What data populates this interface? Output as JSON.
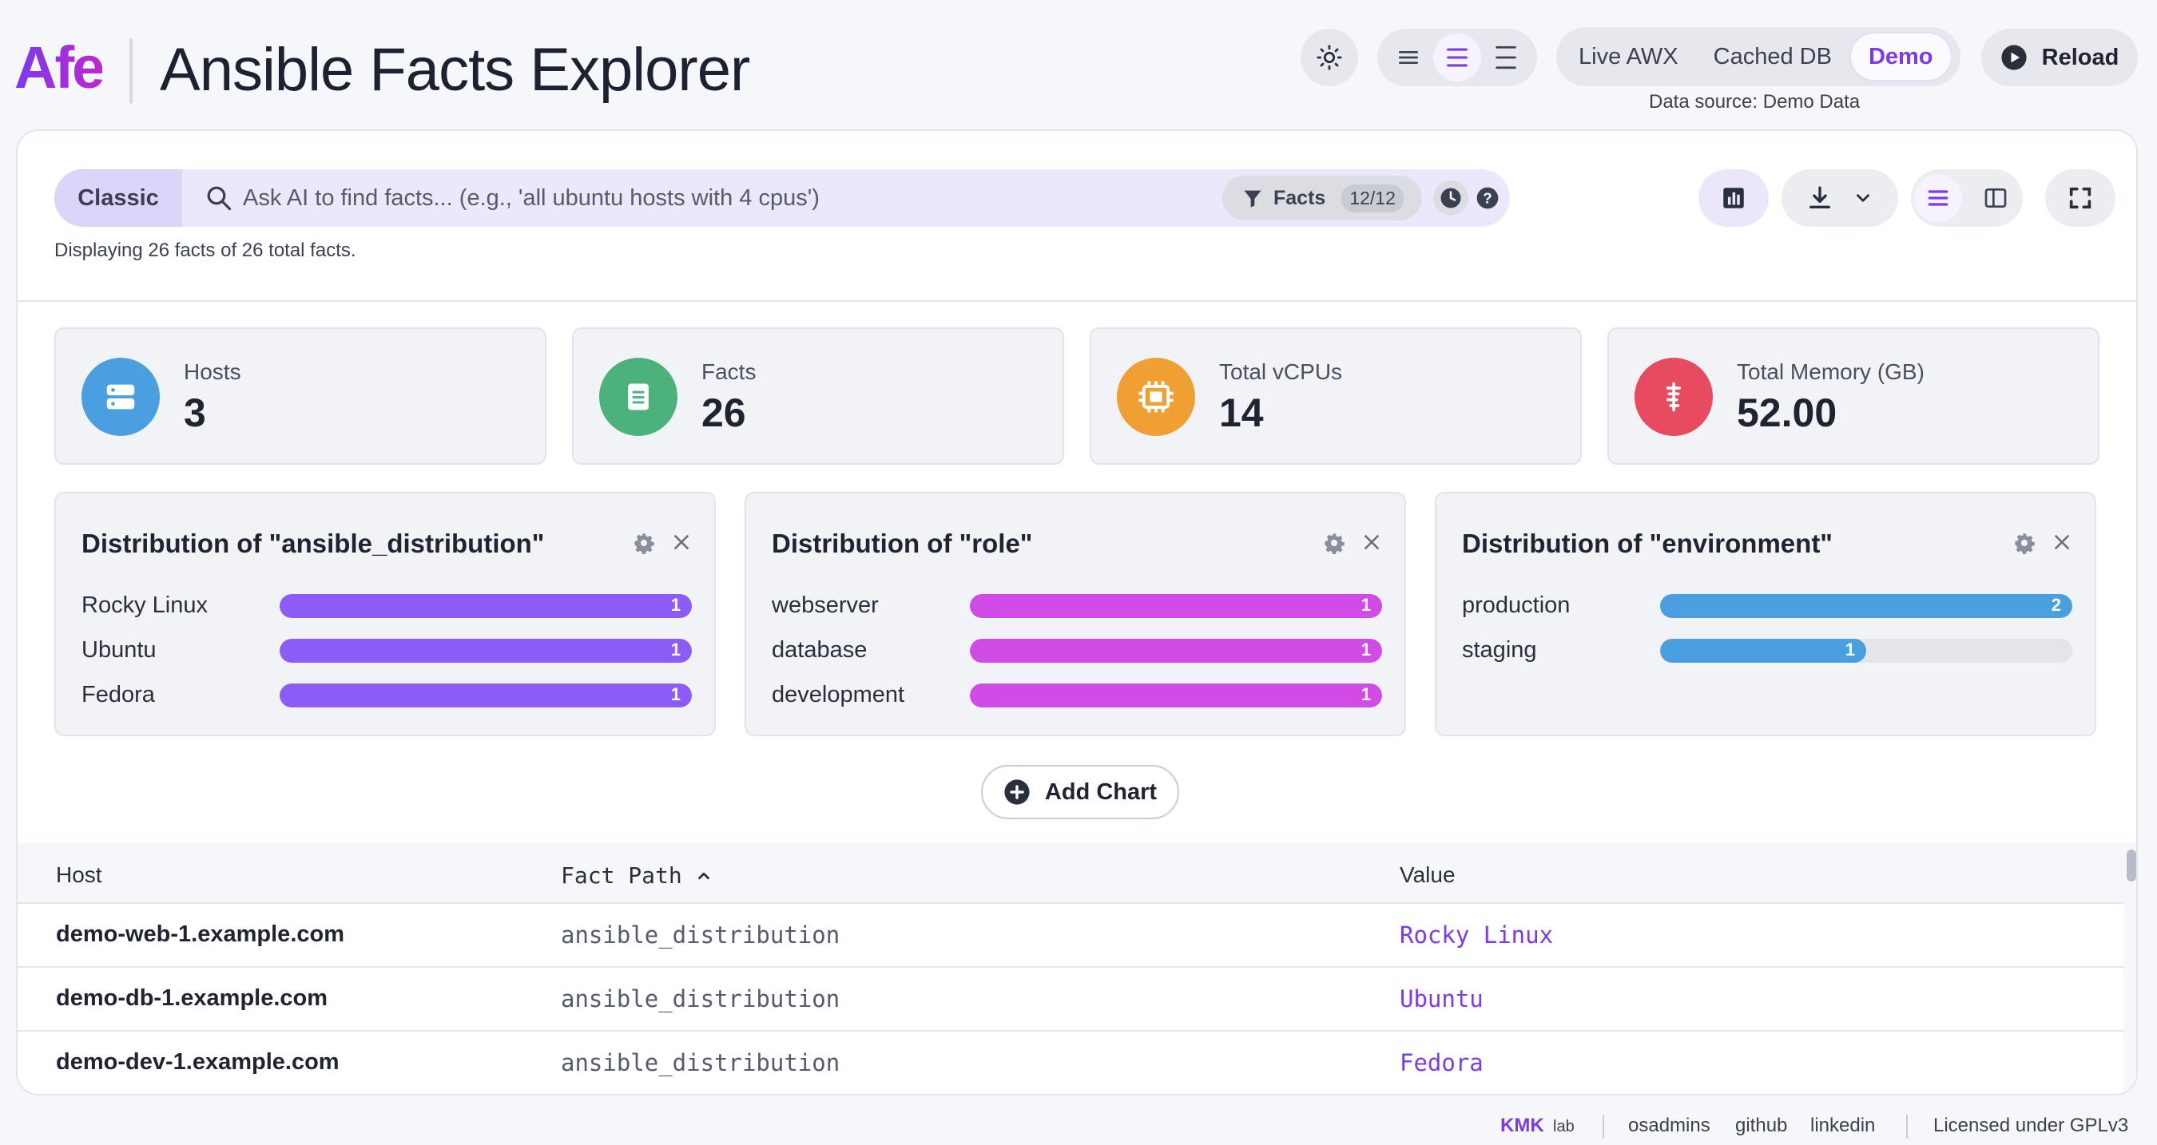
{
  "header": {
    "logo": "Afe",
    "title": "Ansible Facts Explorer",
    "data_sources": [
      "Live AWX",
      "Cached DB",
      "Demo"
    ],
    "active_source": "Demo",
    "data_source_text": "Data source: Demo Data",
    "reload_label": "Reload"
  },
  "search": {
    "mode_label": "Classic",
    "placeholder": "Ask AI to find facts... (e.g., 'all ubuntu hosts with 4 cpus')",
    "facts_label": "Facts",
    "facts_count": "12/12",
    "status": "Displaying 26 facts of 26 total facts."
  },
  "stats": [
    {
      "label": "Hosts",
      "value": "3",
      "color": "#4a9fe0",
      "icon": "server-icon"
    },
    {
      "label": "Facts",
      "value": "26",
      "color": "#4cb27c",
      "icon": "document-icon"
    },
    {
      "label": "Total vCPUs",
      "value": "14",
      "color": "#f0a033",
      "icon": "cpu-icon"
    },
    {
      "label": "Total Memory (GB)",
      "value": "52.00",
      "color": "#e84a5f",
      "icon": "memory-icon"
    }
  ],
  "charts": [
    {
      "title": "Distribution of \"ansible_distribution\"",
      "color": "#8b5cf6",
      "max": 1,
      "items": [
        {
          "label": "Rocky Linux",
          "count": 1
        },
        {
          "label": "Ubuntu",
          "count": 1
        },
        {
          "label": "Fedora",
          "count": 1
        }
      ]
    },
    {
      "title": "Distribution of \"role\"",
      "color": "#d14be6",
      "max": 1,
      "items": [
        {
          "label": "webserver",
          "count": 1
        },
        {
          "label": "database",
          "count": 1
        },
        {
          "label": "development",
          "count": 1
        }
      ]
    },
    {
      "title": "Distribution of \"environment\"",
      "color": "#4a9fe0",
      "max": 2,
      "items": [
        {
          "label": "production",
          "count": 2
        },
        {
          "label": "staging",
          "count": 1
        }
      ]
    }
  ],
  "add_chart_label": "Add Chart",
  "table": {
    "columns": [
      "Host",
      "Fact Path",
      "Value"
    ],
    "rows": [
      {
        "host": "demo-web-1.example.com",
        "path": "ansible_distribution",
        "value": "Rocky Linux"
      },
      {
        "host": "demo-db-1.example.com",
        "path": "ansible_distribution",
        "value": "Ubuntu"
      },
      {
        "host": "demo-dev-1.example.com",
        "path": "ansible_distribution",
        "value": "Fedora"
      }
    ]
  },
  "footer": {
    "brand": "KMK",
    "brand_suffix": "lab",
    "links": [
      "osadmins",
      "github",
      "linkedin"
    ],
    "license": "Licensed under GPLv3"
  }
}
